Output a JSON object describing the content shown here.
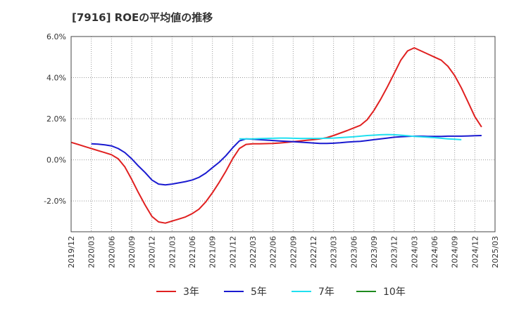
{
  "chart_data": {
    "type": "line",
    "title": "[7916]  ROEの平均値の推移",
    "ylim": [
      -3.5,
      6.0
    ],
    "yticks": [
      {
        "value": 6.0,
        "label": "6.0%"
      },
      {
        "value": 4.0,
        "label": "4.0%"
      },
      {
        "value": 2.0,
        "label": "2.0%"
      },
      {
        "value": 0.0,
        "label": "0.0%"
      },
      {
        "value": -2.0,
        "label": "-2.0%"
      }
    ],
    "xticks": [
      "2019/12",
      "2020/03",
      "2020/06",
      "2020/09",
      "2020/12",
      "2021/03",
      "2021/06",
      "2021/09",
      "2021/12",
      "2022/03",
      "2022/06",
      "2022/09",
      "2022/12",
      "2023/03",
      "2023/06",
      "2023/09",
      "2023/12",
      "2024/03",
      "2024/06",
      "2024/09",
      "2024/12",
      "2025/03"
    ],
    "grid": true,
    "series": [
      {
        "name": "3年",
        "color": "#e02020",
        "start_index": 0,
        "values": [
          0.85,
          0.75,
          0.65,
          0.55,
          0.45,
          0.35,
          0.25,
          0.05,
          -0.35,
          -0.95,
          -1.6,
          -2.2,
          -2.75,
          -3.02,
          -3.08,
          -2.98,
          -2.88,
          -2.78,
          -2.62,
          -2.4,
          -2.05,
          -1.6,
          -1.1,
          -0.55,
          0.05,
          0.55,
          0.75,
          0.78,
          0.78,
          0.79,
          0.8,
          0.82,
          0.85,
          0.88,
          0.92,
          0.95,
          0.98,
          1.02,
          1.08,
          1.18,
          1.3,
          1.42,
          1.55,
          1.68,
          1.95,
          2.4,
          2.95,
          3.55,
          4.2,
          4.85,
          5.3,
          5.45,
          5.3,
          5.15,
          5.0,
          4.85,
          4.55,
          4.1,
          3.5,
          2.8,
          2.1,
          1.6
        ]
      },
      {
        "name": "5年",
        "color": "#1a1ad0",
        "start_index": 3,
        "values": [
          0.78,
          0.76,
          0.73,
          0.68,
          0.55,
          0.35,
          0.05,
          -0.3,
          -0.62,
          -0.98,
          -1.18,
          -1.22,
          -1.18,
          -1.12,
          -1.06,
          -0.98,
          -0.85,
          -0.65,
          -0.38,
          -0.12,
          0.2,
          0.58,
          0.92,
          1.02,
          1.0,
          0.98,
          0.96,
          0.94,
          0.92,
          0.9,
          0.88,
          0.86,
          0.84,
          0.82,
          0.8,
          0.8,
          0.81,
          0.83,
          0.86,
          0.88,
          0.9,
          0.94,
          0.98,
          1.02,
          1.06,
          1.1,
          1.12,
          1.14,
          1.15,
          1.15,
          1.14,
          1.14,
          1.14,
          1.15,
          1.15,
          1.15,
          1.16,
          1.17,
          1.18
        ]
      },
      {
        "name": "7年",
        "color": "#20e0f0",
        "start_index": 25,
        "values": [
          1.02,
          1.02,
          1.02,
          1.03,
          1.04,
          1.05,
          1.06,
          1.06,
          1.05,
          1.04,
          1.04,
          1.04,
          1.04,
          1.05,
          1.06,
          1.08,
          1.1,
          1.12,
          1.15,
          1.18,
          1.2,
          1.22,
          1.23,
          1.22,
          1.2,
          1.17,
          1.14,
          1.12,
          1.1,
          1.08,
          1.05,
          1.02,
          1.0,
          0.98
        ]
      },
      {
        "name": "10年",
        "color": "#1e8a1e",
        "start_index": 0,
        "values": []
      }
    ]
  }
}
